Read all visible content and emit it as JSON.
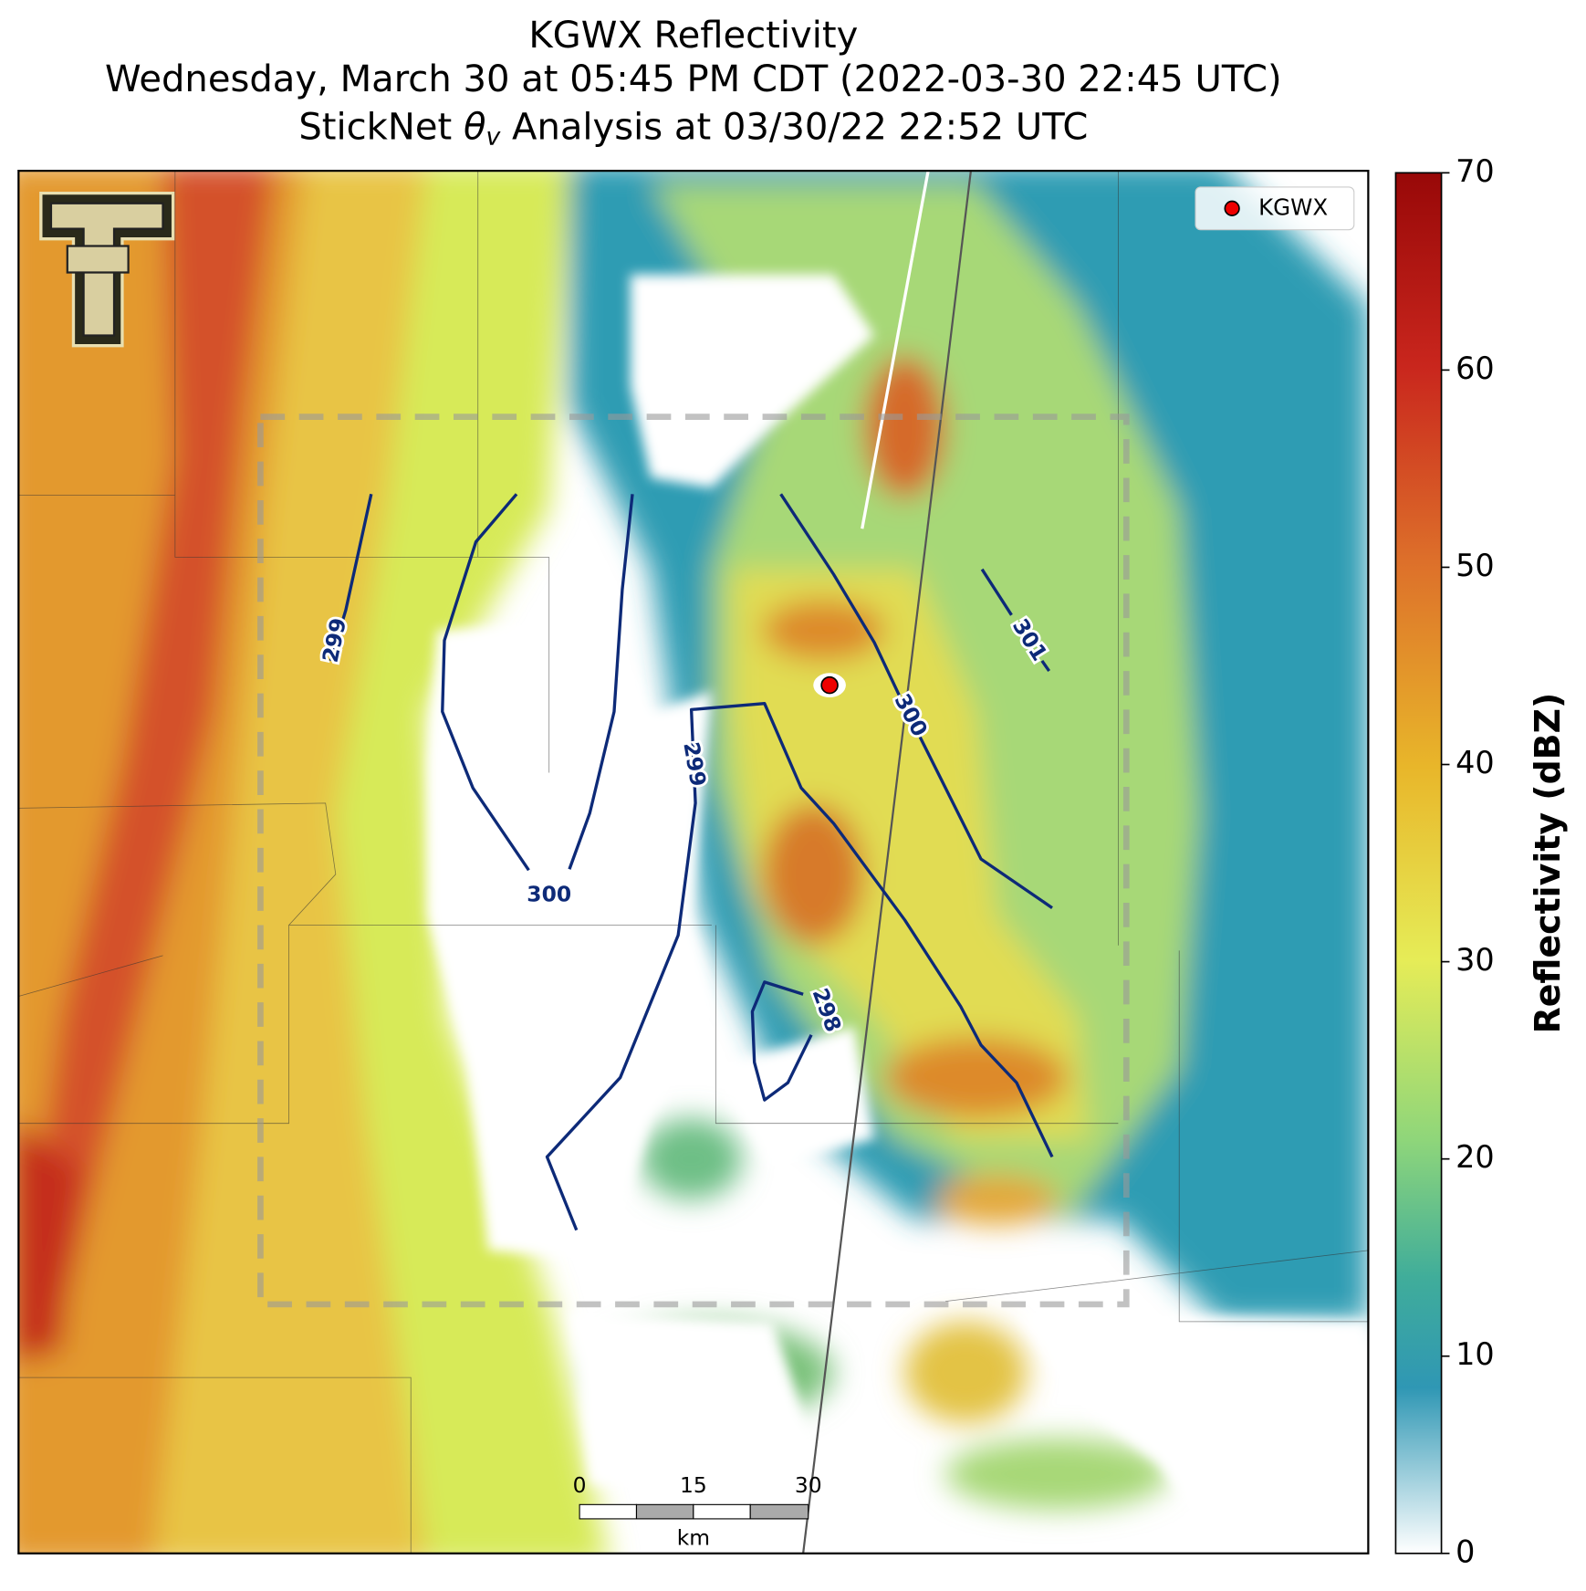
{
  "title": {
    "line1": "KGWX Reflectivity",
    "line2": "Wednesday, March 30 at 05:45 PM CDT (2022-03-30 22:45 UTC)",
    "line3": {
      "before": "StickNet",
      "symbol": "θ",
      "subscript": "v",
      "after": "Analysis at 03/30/22 22:52 UTC"
    }
  },
  "legend": {
    "label": "KGWX"
  },
  "colorbar": {
    "label": "Reflectivity (dBZ)",
    "lim": [
      0,
      70
    ],
    "ticks": [
      0,
      10,
      20,
      30,
      40,
      50,
      60,
      70
    ]
  },
  "contours": [
    {
      "value": 299
    },
    {
      "value": 300
    },
    {
      "value": 299
    },
    {
      "value": 300
    },
    {
      "value": 301
    },
    {
      "value": 298
    }
  ],
  "scale_bar": {
    "ticks": [
      0,
      15,
      30
    ],
    "unit": "km"
  }
}
